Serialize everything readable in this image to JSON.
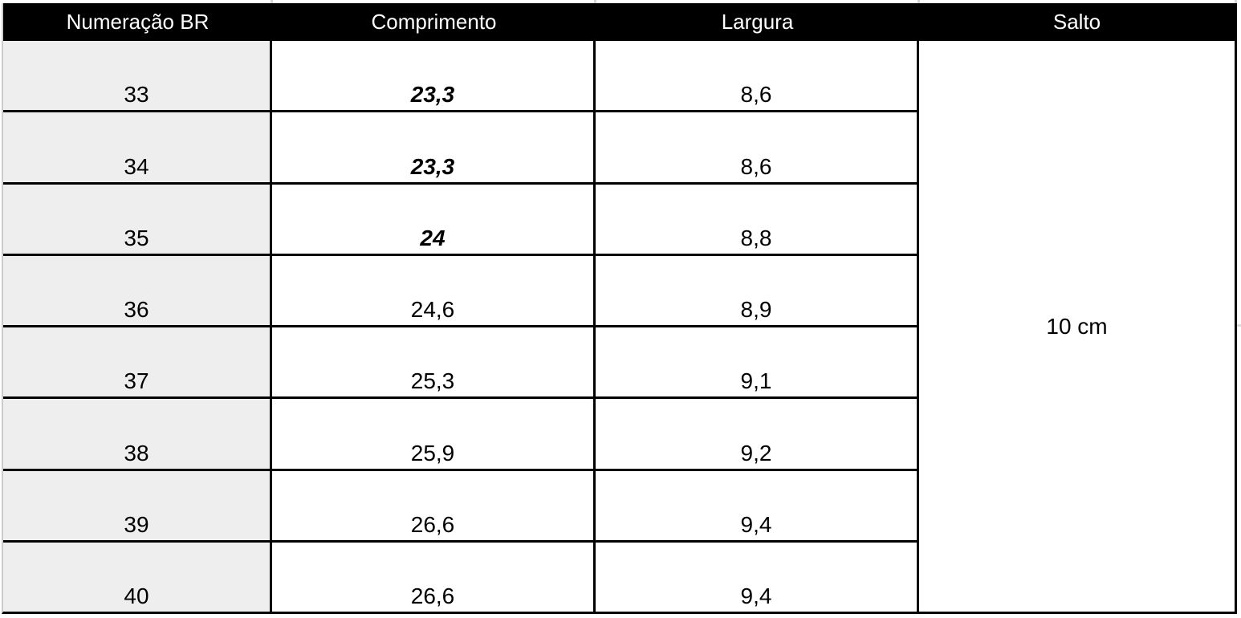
{
  "table": {
    "columns": [
      {
        "key": "numeracao",
        "label": "Numeração BR"
      },
      {
        "key": "comprimento",
        "label": "Comprimento"
      },
      {
        "key": "largura",
        "label": "Largura"
      },
      {
        "key": "salto",
        "label": "Salto"
      }
    ],
    "rows": [
      {
        "numeracao": "33",
        "comprimento": "23,3",
        "largura": "8,6",
        "comprimento_style": "bold-italic"
      },
      {
        "numeracao": "34",
        "comprimento": "23,3",
        "largura": "8,6",
        "comprimento_style": "bold-italic"
      },
      {
        "numeracao": "35",
        "comprimento": "24",
        "largura": "8,8",
        "comprimento_style": "bold-italic"
      },
      {
        "numeracao": "36",
        "comprimento": "24,6",
        "largura": "8,9",
        "comprimento_style": "regular"
      },
      {
        "numeracao": "37",
        "comprimento": "25,3",
        "largura": "9,1",
        "comprimento_style": "regular"
      },
      {
        "numeracao": "38",
        "comprimento": "25,9",
        "largura": "9,2",
        "comprimento_style": "regular"
      },
      {
        "numeracao": "39",
        "comprimento": "26,6",
        "largura": "9,4",
        "comprimento_style": "regular"
      },
      {
        "numeracao": "40",
        "comprimento": "26,6",
        "largura": "9,4",
        "comprimento_style": "regular"
      }
    ],
    "salto_value": "10 cm"
  },
  "colors": {
    "header_bg": "#000000",
    "header_text": "#ffffff",
    "first_column_bg": "#eeeeee",
    "cell_bg": "#ffffff",
    "grid_border": "#000000",
    "outer_left_border": "#cccccc",
    "gridline_tick": "#d6d6d6"
  }
}
